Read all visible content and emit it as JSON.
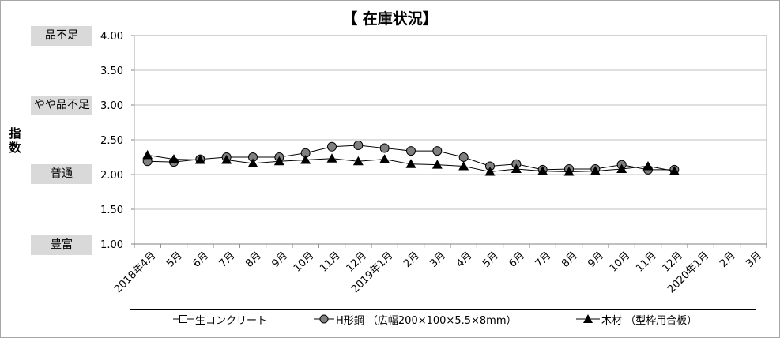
{
  "chart_data": {
    "type": "line",
    "title": "【 在庫状況】",
    "ylabel": "指数",
    "ylim": [
      1.0,
      4.0
    ],
    "yticks": [
      "1.00",
      "1.50",
      "2.00",
      "2.50",
      "3.00",
      "3.50",
      "4.00"
    ],
    "grid": true,
    "legend_position": "bottom",
    "categories": [
      "2018年4月",
      "5月",
      "6月",
      "7月",
      "8月",
      "9月",
      "10月",
      "11月",
      "12月",
      "2019年1月",
      "2月",
      "3月",
      "4月",
      "5月",
      "6月",
      "7月",
      "8月",
      "9月",
      "10月",
      "11月",
      "12月",
      "2020年1月",
      "2月",
      "3月"
    ],
    "level_labels": [
      {
        "text": "品不足",
        "value": 4.0
      },
      {
        "text": "やや品不足",
        "value": 3.0
      },
      {
        "text": "普通",
        "value": 2.0
      },
      {
        "text": "豊富",
        "value": 1.0
      }
    ],
    "series": [
      {
        "name": "生コンクリート",
        "marker": "square",
        "color": "#000000",
        "values": [
          null,
          null,
          null,
          null,
          null,
          null,
          null,
          null,
          null,
          null,
          null,
          null,
          null,
          null,
          null,
          null,
          null,
          null,
          null,
          null,
          null,
          null,
          null,
          null
        ]
      },
      {
        "name": "H形鋼 （広幅200×100×5.5×8mm）",
        "marker": "circle",
        "color": "#808080",
        "values": [
          2.19,
          2.18,
          2.22,
          2.25,
          2.25,
          2.25,
          2.31,
          2.4,
          2.42,
          2.38,
          2.34,
          2.34,
          2.25,
          2.12,
          2.15,
          2.07,
          2.08,
          2.08,
          2.14,
          2.07,
          2.07,
          null,
          null,
          null
        ]
      },
      {
        "name": "木材 （型枠用合板）",
        "marker": "triangle",
        "color": "#000000",
        "values": [
          2.28,
          2.22,
          2.21,
          2.21,
          2.16,
          2.19,
          2.21,
          2.23,
          2.19,
          2.22,
          2.15,
          2.14,
          2.12,
          2.04,
          2.08,
          2.05,
          2.04,
          2.05,
          2.08,
          2.12,
          2.05,
          null,
          null,
          null
        ]
      }
    ]
  }
}
